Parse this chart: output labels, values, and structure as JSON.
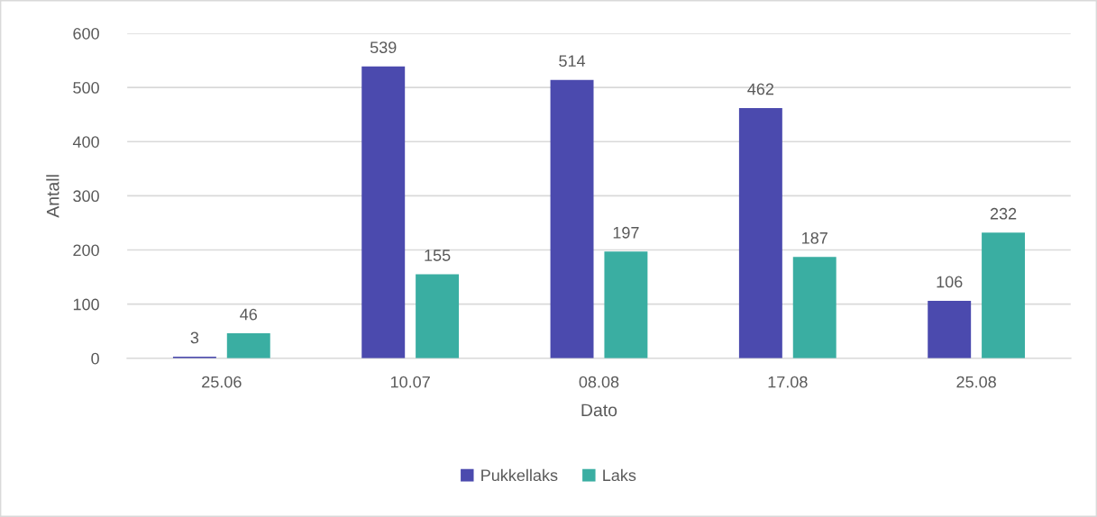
{
  "chart_data": {
    "type": "bar",
    "xlabel": "Dato",
    "ylabel": "Antall",
    "categories": [
      "25.06",
      "10.07",
      "08.08",
      "17.08",
      "25.08"
    ],
    "series": [
      {
        "name": "Pukkellaks",
        "color": "#4b4aae",
        "values": [
          3,
          539,
          514,
          462,
          106
        ]
      },
      {
        "name": "Laks",
        "color": "#3aaea2",
        "values": [
          46,
          155,
          197,
          187,
          232
        ]
      }
    ],
    "ylim": [
      0,
      600
    ],
    "yticks": [
      0,
      100,
      200,
      300,
      400,
      500,
      600
    ],
    "grid": "y",
    "legend": "bottom",
    "data_labels": true
  }
}
